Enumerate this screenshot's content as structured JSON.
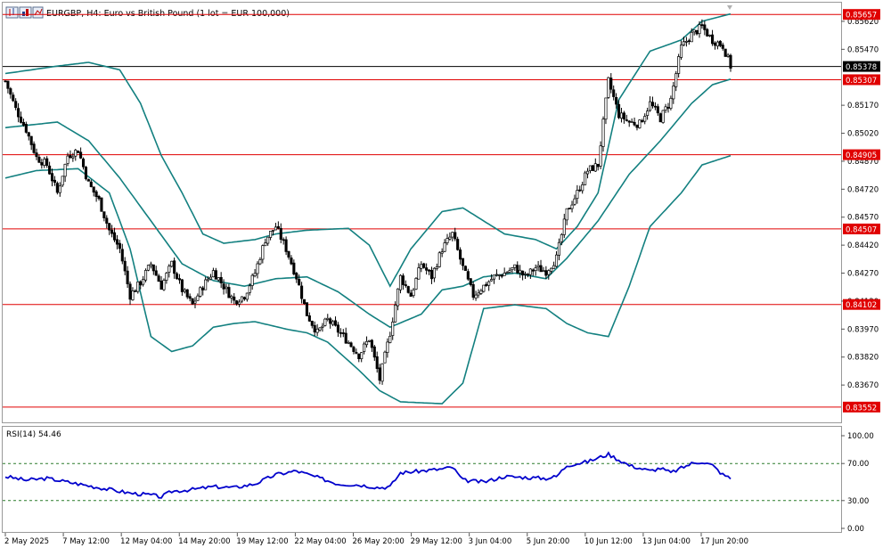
{
  "header": {
    "symbol": "EURGBP",
    "timeframe": "H4",
    "description": "Euro vs British Pound (1 lot = EUR 100,000)",
    "title_text": "EURGBP, H4:  Euro vs British Pound (1 lot = EUR 100,000)"
  },
  "chart_data": [
    {
      "type": "candlestick",
      "panel": "price",
      "ylim": [
        0.8347,
        0.8572
      ],
      "y_tick_labels": [
        "0.85620",
        "0.85470",
        "0.85170",
        "0.85020",
        "0.84870",
        "0.84720",
        "0.84570",
        "0.84420",
        "0.84270",
        "0.84120",
        "0.83970",
        "0.83820",
        "0.83670"
      ],
      "y_tick_values": [
        0.8562,
        0.8547,
        0.8517,
        0.8502,
        0.8487,
        0.8472,
        0.8457,
        0.8442,
        0.8427,
        0.8412,
        0.8397,
        0.8382,
        0.8367
      ],
      "x_tick_labels": [
        "2 May 2025",
        "7 May 12:00",
        "12 May 04:00",
        "14 May 20:00",
        "19 May 12:00",
        "22 May 04:00",
        "26 May 20:00",
        "29 May 12:00",
        "3 Jun 04:00",
        "5 Jun 20:00",
        "10 Jun 12:00",
        "13 Jun 04:00",
        "17 Jun 20:00"
      ],
      "current_price": {
        "label": "0.85378",
        "value": 0.85378
      },
      "horizontal_levels": [
        {
          "label": "0.85657",
          "value": 0.85657,
          "color": "#e00000"
        },
        {
          "label": "0.85307",
          "value": 0.85307,
          "color": "#e00000"
        },
        {
          "label": "0.84905",
          "value": 0.84905,
          "color": "#e00000"
        },
        {
          "label": "0.84507",
          "value": 0.84507,
          "color": "#e00000"
        },
        {
          "label": "0.84102",
          "value": 0.84102,
          "color": "#e00000"
        },
        {
          "label": "0.83552",
          "value": 0.83552,
          "color": "#e00000"
        }
      ],
      "close_anchors": [
        [
          0,
          0.853
        ],
        [
          4,
          0.8515
        ],
        [
          8,
          0.8504
        ],
        [
          12,
          0.8489
        ],
        [
          16,
          0.8485
        ],
        [
          20,
          0.847
        ],
        [
          24,
          0.849
        ],
        [
          28,
          0.8493
        ],
        [
          32,
          0.8475
        ],
        [
          36,
          0.8466
        ],
        [
          40,
          0.845
        ],
        [
          44,
          0.844
        ],
        [
          48,
          0.8415
        ],
        [
          52,
          0.8422
        ],
        [
          56,
          0.8432
        ],
        [
          60,
          0.842
        ],
        [
          64,
          0.8432
        ],
        [
          68,
          0.8418
        ],
        [
          72,
          0.841
        ],
        [
          76,
          0.842
        ],
        [
          80,
          0.8428
        ],
        [
          84,
          0.842
        ],
        [
          88,
          0.8412
        ],
        [
          92,
          0.8415
        ],
        [
          96,
          0.8427
        ],
        [
          100,
          0.8445
        ],
        [
          104,
          0.8452
        ],
        [
          108,
          0.844
        ],
        [
          112,
          0.8425
        ],
        [
          116,
          0.8405
        ],
        [
          120,
          0.8395
        ],
        [
          124,
          0.8402
        ],
        [
          128,
          0.8396
        ],
        [
          132,
          0.839
        ],
        [
          136,
          0.8383
        ],
        [
          140,
          0.8392
        ],
        [
          144,
          0.837
        ],
        [
          148,
          0.8395
        ],
        [
          152,
          0.8425
        ],
        [
          156,
          0.8415
        ],
        [
          160,
          0.8432
        ],
        [
          164,
          0.8425
        ],
        [
          168,
          0.844
        ],
        [
          172,
          0.8448
        ],
        [
          176,
          0.843
        ],
        [
          180,
          0.8415
        ],
        [
          184,
          0.842
        ],
        [
          188,
          0.8425
        ],
        [
          192,
          0.8427
        ],
        [
          196,
          0.843
        ],
        [
          200,
          0.8425
        ],
        [
          204,
          0.843
        ],
        [
          208,
          0.8428
        ],
        [
          212,
          0.8435
        ],
        [
          216,
          0.846
        ],
        [
          220,
          0.847
        ],
        [
          224,
          0.8482
        ],
        [
          228,
          0.8485
        ],
        [
          232,
          0.853
        ],
        [
          236,
          0.8512
        ],
        [
          240,
          0.8508
        ],
        [
          244,
          0.8507
        ],
        [
          248,
          0.8518
        ],
        [
          252,
          0.851
        ],
        [
          256,
          0.852
        ],
        [
          260,
          0.8548
        ],
        [
          264,
          0.8555
        ],
        [
          268,
          0.8559
        ],
        [
          272,
          0.8552
        ],
        [
          276,
          0.8549
        ],
        [
          279,
          0.8538
        ]
      ],
      "bollinger_upper_anchors": [
        [
          0,
          0.8534
        ],
        [
          20,
          0.8538
        ],
        [
          32,
          0.854
        ],
        [
          44,
          0.8536
        ],
        [
          52,
          0.8518
        ],
        [
          60,
          0.849
        ],
        [
          68,
          0.847
        ],
        [
          76,
          0.8448
        ],
        [
          84,
          0.8443
        ],
        [
          96,
          0.8445
        ],
        [
          104,
          0.8448
        ],
        [
          116,
          0.845
        ],
        [
          132,
          0.8451
        ],
        [
          140,
          0.8442
        ],
        [
          148,
          0.842
        ],
        [
          156,
          0.844
        ],
        [
          168,
          0.846
        ],
        [
          176,
          0.8462
        ],
        [
          184,
          0.8455
        ],
        [
          192,
          0.8448
        ],
        [
          204,
          0.8445
        ],
        [
          212,
          0.844
        ],
        [
          220,
          0.8452
        ],
        [
          228,
          0.847
        ],
        [
          236,
          0.852
        ],
        [
          248,
          0.8546
        ],
        [
          260,
          0.8552
        ],
        [
          268,
          0.8562
        ],
        [
          279,
          0.8566
        ]
      ],
      "bollinger_middle_anchors": [
        [
          0,
          0.8505
        ],
        [
          20,
          0.8508
        ],
        [
          32,
          0.8498
        ],
        [
          44,
          0.8478
        ],
        [
          56,
          0.8455
        ],
        [
          68,
          0.8432
        ],
        [
          80,
          0.8423
        ],
        [
          92,
          0.842
        ],
        [
          104,
          0.8424
        ],
        [
          116,
          0.8425
        ],
        [
          128,
          0.8417
        ],
        [
          140,
          0.8405
        ],
        [
          148,
          0.8398
        ],
        [
          160,
          0.8405
        ],
        [
          168,
          0.8418
        ],
        [
          176,
          0.842
        ],
        [
          184,
          0.8425
        ],
        [
          196,
          0.8427
        ],
        [
          208,
          0.8424
        ],
        [
          216,
          0.8435
        ],
        [
          228,
          0.8455
        ],
        [
          240,
          0.848
        ],
        [
          252,
          0.8498
        ],
        [
          264,
          0.8518
        ],
        [
          272,
          0.8528
        ],
        [
          279,
          0.8531
        ]
      ],
      "bollinger_lower_anchors": [
        [
          0,
          0.8478
        ],
        [
          12,
          0.8482
        ],
        [
          28,
          0.8483
        ],
        [
          40,
          0.847
        ],
        [
          48,
          0.844
        ],
        [
          56,
          0.8393
        ],
        [
          64,
          0.8385
        ],
        [
          72,
          0.8388
        ],
        [
          80,
          0.8398
        ],
        [
          88,
          0.84
        ],
        [
          96,
          0.8401
        ],
        [
          108,
          0.8397
        ],
        [
          116,
          0.8395
        ],
        [
          124,
          0.839
        ],
        [
          136,
          0.8375
        ],
        [
          144,
          0.8364
        ],
        [
          152,
          0.8358
        ],
        [
          168,
          0.8357
        ],
        [
          176,
          0.8368
        ],
        [
          184,
          0.8408
        ],
        [
          196,
          0.841
        ],
        [
          208,
          0.8408
        ],
        [
          216,
          0.84
        ],
        [
          224,
          0.8395
        ],
        [
          232,
          0.8393
        ],
        [
          240,
          0.842
        ],
        [
          248,
          0.8452
        ],
        [
          260,
          0.847
        ],
        [
          268,
          0.8485
        ],
        [
          279,
          0.849
        ]
      ]
    },
    {
      "type": "line",
      "panel": "indicator",
      "title": "RSI(14) 54.46",
      "ylim": [
        0,
        100
      ],
      "y_tick_labels": [
        "100.00",
        "70.00",
        "30.00",
        "0.00"
      ],
      "y_tick_values": [
        100,
        70,
        30,
        0
      ],
      "reference_levels": [
        70,
        30
      ],
      "series": [
        {
          "color": "#0000cc",
          "anchors": [
            [
              0,
              56
            ],
            [
              8,
              52
            ],
            [
              16,
              54
            ],
            [
              24,
              50
            ],
            [
              32,
              46
            ],
            [
              40,
              42
            ],
            [
              48,
              38
            ],
            [
              56,
              36
            ],
            [
              60,
              34
            ],
            [
              64,
              40
            ],
            [
              72,
              42
            ],
            [
              80,
              45
            ],
            [
              88,
              44
            ],
            [
              96,
              48
            ],
            [
              104,
              58
            ],
            [
              112,
              62
            ],
            [
              120,
              55
            ],
            [
              128,
              48
            ],
            [
              136,
              47
            ],
            [
              144,
              44
            ],
            [
              148,
              45
            ],
            [
              152,
              60
            ],
            [
              160,
              62
            ],
            [
              168,
              64
            ],
            [
              172,
              66
            ],
            [
              176,
              52
            ],
            [
              184,
              50
            ],
            [
              192,
              56
            ],
            [
              200,
              55
            ],
            [
              208,
              54
            ],
            [
              212,
              56
            ],
            [
              216,
              68
            ],
            [
              224,
              72
            ],
            [
              232,
              80
            ],
            [
              240,
              68
            ],
            [
              248,
              62
            ],
            [
              252,
              65
            ],
            [
              256,
              60
            ],
            [
              264,
              70
            ],
            [
              268,
              72
            ],
            [
              272,
              68
            ],
            [
              276,
              58
            ],
            [
              279,
              54
            ]
          ]
        }
      ]
    }
  ]
}
